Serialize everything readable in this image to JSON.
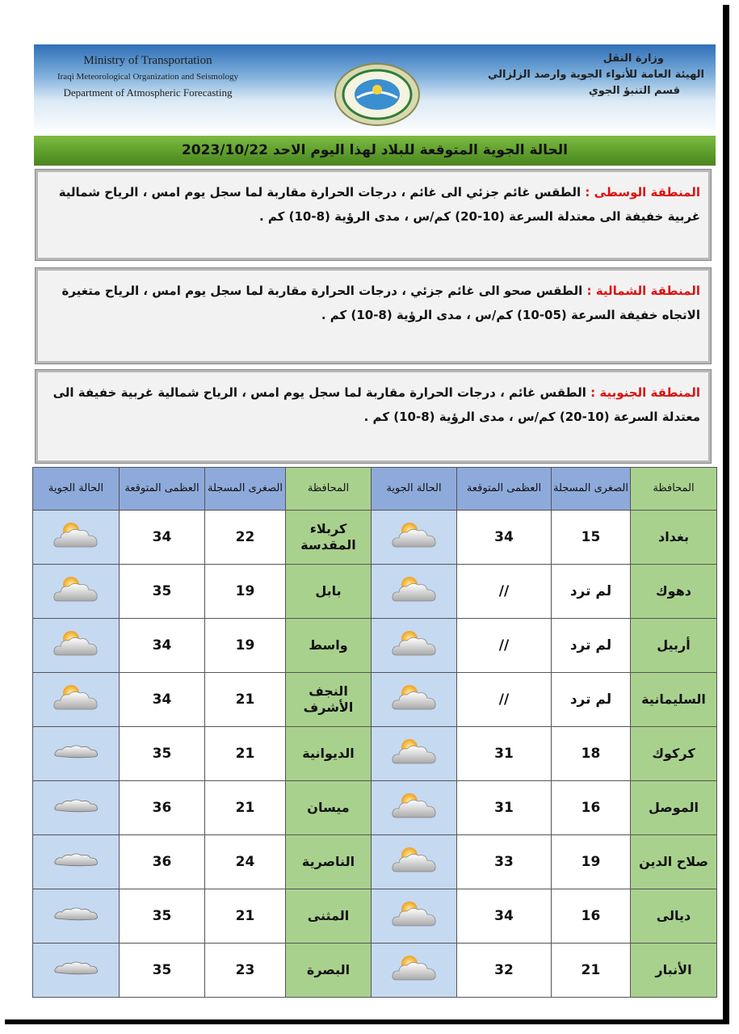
{
  "header": {
    "english": [
      "Ministry of Transportation",
      "Iraqi Meteorological Organization and Seismology",
      "Department of Atmospheric Forecasting"
    ],
    "arabic": [
      "وزارة النقل",
      "الهيئة العامة للأنواء الجوية وارصد الزلزالي",
      "قسم التنبؤ الجوي"
    ]
  },
  "title": "الحالة الجوية المتوقعة للبلاد لهذا اليوم الاحد  2023/10/22",
  "regions": [
    {
      "label": "المنطقة الوسطى :",
      "text": "الطقس غائم جزئي الى غائم ، درجات الحرارة مقاربة لما سجل يوم امس ، الرياح شمالية غربية خفيفة الى معتدلة السرعة (10-20) كم/س ، مدى الرؤية (8-10) كم ."
    },
    {
      "label": "المنطقة الشمالية :",
      "text": "الطقس صحو الى غائم جزئي ، درجات الحرارة مقاربة لما سجل يوم امس ، الرياح متغيرة الاتجاه خفيفة السرعة (05-10) كم/س ، مدى الرؤية (8-10) كم ."
    },
    {
      "label": "المنطقة الجنوبية :",
      "text": "الطقس غائم ، درجات الحرارة مقاربة لما سجل يوم امس ، الرياح شمالية غربية خفيفة الى معتدلة السرعة (10-20) كم/س ، مدى الرؤية (8-10) كم ."
    }
  ],
  "table": {
    "header": [
      "المحافظة",
      "الصغرى المسجلة",
      "العظمى المتوقعة",
      "الحالة الجوية",
      "المحافظة",
      "الصغرى المسجلة",
      "العظمى المتوقعة",
      "الحالة الجوية"
    ],
    "rows": [
      [
        "بغداد",
        15,
        34,
        "كربلاء المقدسة",
        22,
        34
      ],
      [
        "دهوك",
        "لم ترد",
        "//",
        "بابل",
        19,
        35
      ],
      [
        "أربيل",
        "لم ترد",
        "//",
        "واسط",
        19,
        34
      ],
      [
        "السليمانية",
        "لم ترد",
        "//",
        "النجف الأشرف",
        21,
        34
      ],
      [
        "كركوك",
        18,
        31,
        "الديوانية",
        21,
        35
      ],
      [
        "الموصل",
        16,
        31,
        "ميسان",
        21,
        36
      ],
      [
        "صلاح الدين",
        19,
        33,
        "الناصرية",
        24,
        36
      ],
      [
        "ديالى",
        16,
        34,
        "المثنى",
        21,
        35
      ],
      [
        "الأنبار",
        21,
        32,
        "البصرة",
        23,
        35
      ]
    ]
  }
}
